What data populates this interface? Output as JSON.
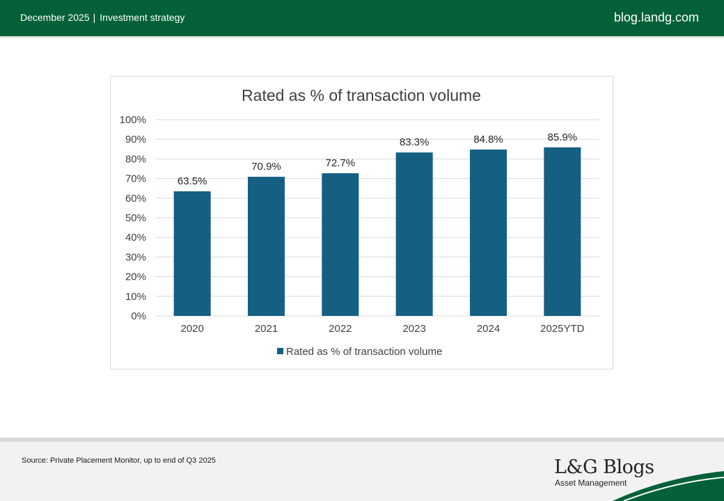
{
  "header": {
    "date": "December 2025",
    "separator": "|",
    "section": "Investment strategy",
    "site": "blog.landg.com"
  },
  "colors": {
    "brand_green": "#046137",
    "bar": "#155F83",
    "gridline": "#d9d9d9",
    "text": "#404040"
  },
  "chart_data": {
    "type": "bar",
    "title": "Rated as % of transaction volume",
    "categories": [
      "2020",
      "2021",
      "2022",
      "2023",
      "2024",
      "2025YTD"
    ],
    "series": [
      {
        "name": "Rated as % of transaction volume",
        "values": [
          63.5,
          70.9,
          72.7,
          83.3,
          84.8,
          85.9
        ]
      }
    ],
    "data_labels": [
      "63.5%",
      "70.9%",
      "72.7%",
      "83.3%",
      "84.8%",
      "85.9%"
    ],
    "y_ticks": [
      "0%",
      "10%",
      "20%",
      "30%",
      "40%",
      "50%",
      "60%",
      "70%",
      "80%",
      "90%",
      "100%"
    ],
    "ylim": [
      0,
      100
    ],
    "xlabel": "",
    "ylabel": "",
    "grid": true,
    "legend": "bottom"
  },
  "footer": {
    "source": "Source: Private Placement Monitor, up to end of Q3 2025",
    "logo_title": "L&G Blogs",
    "logo_subtitle": "Asset Management"
  }
}
